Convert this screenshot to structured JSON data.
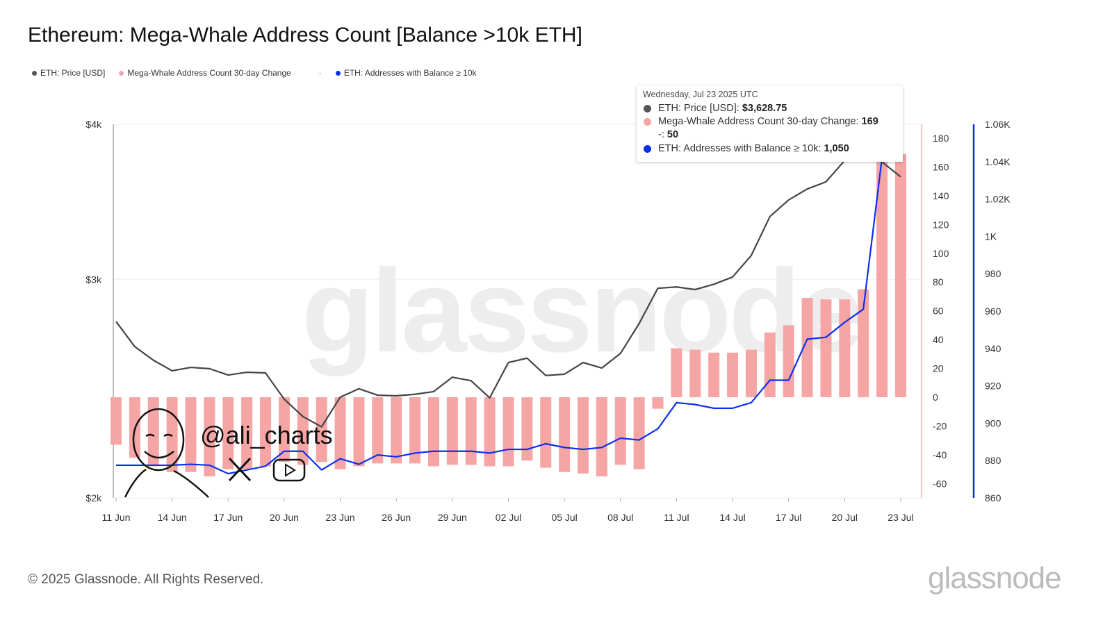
{
  "title": "Ethereum: Mega-Whale Address Count [Balance >10k ETH]",
  "legend": [
    {
      "label": "ETH: Price [USD]",
      "color": "#555555"
    },
    {
      "label": "Mega-Whale Address Count 30-day Change",
      "color": "#f6a5a5"
    },
    {
      "label": "-",
      "color": ""
    },
    {
      "label": "ETH: Addresses with Balance ≥ 10k",
      "color": "#0a2ff0"
    }
  ],
  "tooltip": {
    "date": "Wednesday, Jul 23 2025 UTC",
    "price_label": "ETH: Price [USD]:",
    "price_value": "$3,628.75",
    "change_label": "Mega-Whale Address Count 30-day Change:",
    "change_value": "169",
    "dash_label": "-:",
    "dash_value": "50",
    "addr_label": "ETH: Addresses with Balance ≥ 10k:",
    "addr_value": "1,050"
  },
  "watermark": "glassnode",
  "overlay_handle": "@ali_charts",
  "footer": {
    "copyright": "© 2025 Glassnode. All Rights Reserved.",
    "logo": "glassnode"
  },
  "chart_data": {
    "type": "bar+line",
    "title": "Ethereum: Mega-Whale Address Count [Balance >10k ETH]",
    "x": [
      "2025-06-11",
      "2025-06-12",
      "2025-06-13",
      "2025-06-14",
      "2025-06-15",
      "2025-06-16",
      "2025-06-17",
      "2025-06-18",
      "2025-06-19",
      "2025-06-20",
      "2025-06-21",
      "2025-06-22",
      "2025-06-23",
      "2025-06-24",
      "2025-06-25",
      "2025-06-26",
      "2025-06-27",
      "2025-06-28",
      "2025-06-29",
      "2025-06-30",
      "2025-07-01",
      "2025-07-02",
      "2025-07-03",
      "2025-07-04",
      "2025-07-05",
      "2025-07-06",
      "2025-07-07",
      "2025-07-08",
      "2025-07-09",
      "2025-07-10",
      "2025-07-11",
      "2025-07-12",
      "2025-07-13",
      "2025-07-14",
      "2025-07-15",
      "2025-07-16",
      "2025-07-17",
      "2025-07-18",
      "2025-07-19",
      "2025-07-20",
      "2025-07-21",
      "2025-07-22",
      "2025-07-23"
    ],
    "x_ticks": [
      "11 Jun",
      "14 Jun",
      "17 Jun",
      "20 Jun",
      "23 Jun",
      "26 Jun",
      "29 Jun",
      "02 Jul",
      "05 Jul",
      "08 Jul",
      "11 Jul",
      "14 Jul",
      "17 Jul",
      "20 Jul",
      "23 Jul"
    ],
    "series": [
      {
        "name": "ETH: Price [USD]",
        "type": "line",
        "axis": "left",
        "color": "#444444",
        "values": [
          2774,
          2648,
          2582,
          2532,
          2548,
          2542,
          2512,
          2525,
          2522,
          2402,
          2326,
          2282,
          2411,
          2449,
          2420,
          2417,
          2424,
          2436,
          2502,
          2486,
          2408,
          2571,
          2592,
          2510,
          2516,
          2571,
          2545,
          2615,
          2764,
          2951,
          2958,
          2944,
          2973,
          3013,
          3136,
          3371,
          3476,
          3548,
          3595,
          3740,
          3780,
          3730,
          3628.75
        ]
      },
      {
        "name": "Mega-Whale Address Count 30-day Change",
        "type": "bar",
        "axis": "right",
        "color": "#f6a5a5",
        "values": [
          -33,
          -42,
          -48,
          -52,
          -52,
          -55,
          -50,
          -50,
          -48,
          -45,
          -47,
          -45,
          -50,
          -48,
          -46,
          -46,
          -46,
          -48,
          -47,
          -47,
          -48,
          -48,
          -44,
          -49,
          -52,
          -53,
          -55,
          -47,
          -50,
          -8,
          34,
          33,
          31,
          31,
          33,
          45,
          50,
          69,
          68,
          68,
          75,
          182,
          169
        ]
      },
      {
        "name": "ETH: Addresses with Balance ≥ 10k",
        "type": "line",
        "axis": "right2",
        "color": "#0a2ff0",
        "values": [
          877.5,
          877.5,
          877.5,
          877.5,
          878,
          877.5,
          873,
          875,
          877,
          885,
          885,
          875,
          881,
          878,
          883,
          882,
          884,
          885,
          885,
          885,
          884,
          886,
          886,
          889,
          887,
          886,
          887,
          892,
          891,
          897,
          911,
          910,
          908,
          908,
          911,
          923,
          923,
          945,
          946,
          954,
          961,
          1042,
          1050
        ]
      }
    ],
    "y_left": {
      "scale": "log",
      "range": [
        2000,
        4000
      ],
      "ticks": [
        "$2k",
        "$3k",
        "$4k"
      ],
      "tick_values": [
        2000,
        3000,
        4000
      ]
    },
    "y_right": {
      "range": [
        -70,
        180
      ],
      "ticks": [
        "-60",
        "-40",
        "-20",
        "0",
        "20",
        "40",
        "60",
        "80",
        "100",
        "120",
        "140",
        "160",
        "180"
      ],
      "tick_values": [
        -60,
        -40,
        -20,
        0,
        20,
        40,
        60,
        80,
        100,
        120,
        140,
        160,
        180
      ]
    },
    "y_right2": {
      "range": [
        860,
        1060
      ],
      "ticks": [
        "860",
        "880",
        "900",
        "920",
        "940",
        "960",
        "980",
        "1K",
        "1.02K",
        "1.04K",
        "1.06K"
      ],
      "tick_values": [
        860,
        880,
        900,
        920,
        940,
        960,
        980,
        1000,
        1020,
        1040,
        1060
      ]
    },
    "grid": true,
    "legend_position": "top-left"
  }
}
